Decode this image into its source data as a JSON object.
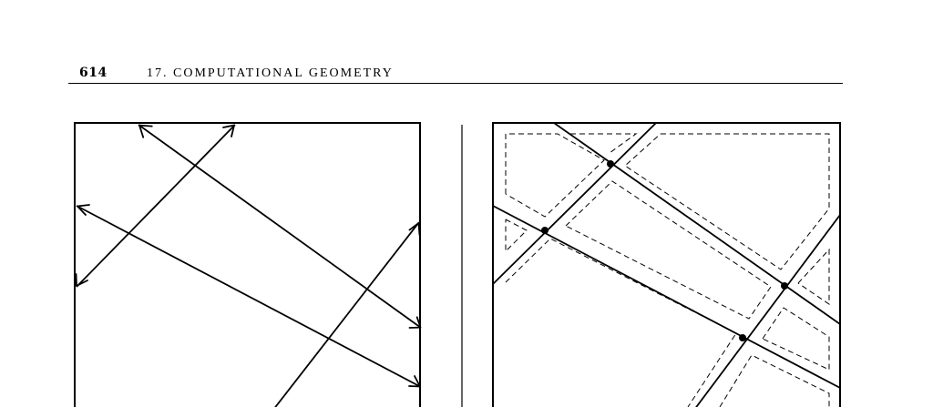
{
  "header": {
    "page_number": "614",
    "chapter_title": "17.  COMPUTATIONAL GEOMETRY"
  },
  "figure": {
    "description_panels": [
      "lines-arrangement",
      "trapezoidal-decomposition"
    ],
    "stroke_color": "#000000",
    "intersection_point_color": "#000000"
  }
}
